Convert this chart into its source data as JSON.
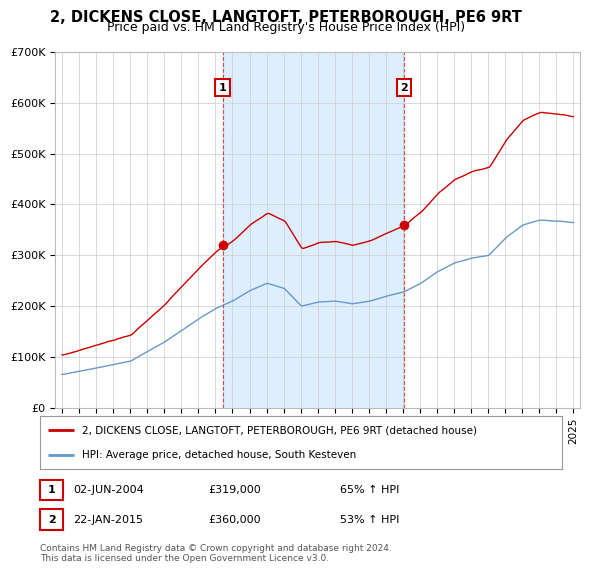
{
  "title": "2, DICKENS CLOSE, LANGTOFT, PETERBOROUGH, PE6 9RT",
  "subtitle": "Price paid vs. HM Land Registry's House Price Index (HPI)",
  "line1_label": "2, DICKENS CLOSE, LANGTOFT, PETERBOROUGH, PE6 9RT (detached house)",
  "line2_label": "HPI: Average price, detached house, South Kesteven",
  "line1_color": "#cc0000",
  "line2_color": "#6699cc",
  "shade_color": "#ddeeff",
  "sale1_date_x": 2004.42,
  "sale1_price": 319000,
  "sale1_label": "1",
  "sale2_date_x": 2015.06,
  "sale2_price": 360000,
  "sale2_label": "2",
  "ylim": [
    0,
    700000
  ],
  "yticks": [
    0,
    100000,
    200000,
    300000,
    400000,
    500000,
    600000,
    700000
  ],
  "ytick_labels": [
    "£0",
    "£100K",
    "£200K",
    "£300K",
    "£400K",
    "£500K",
    "£600K",
    "£700K"
  ],
  "xlim_start": 1994.6,
  "xlim_end": 2025.4,
  "footer": "Contains HM Land Registry data © Crown copyright and database right 2024.\nThis data is licensed under the Open Government Licence v3.0.",
  "legend_entry1_date": "02-JUN-2004",
  "legend_entry1_price": "£319,000",
  "legend_entry1_pct": "65% ↑ HPI",
  "legend_entry2_date": "22-JAN-2015",
  "legend_entry2_price": "£360,000",
  "legend_entry2_pct": "53% ↑ HPI",
  "bg_color": "#ffffff"
}
